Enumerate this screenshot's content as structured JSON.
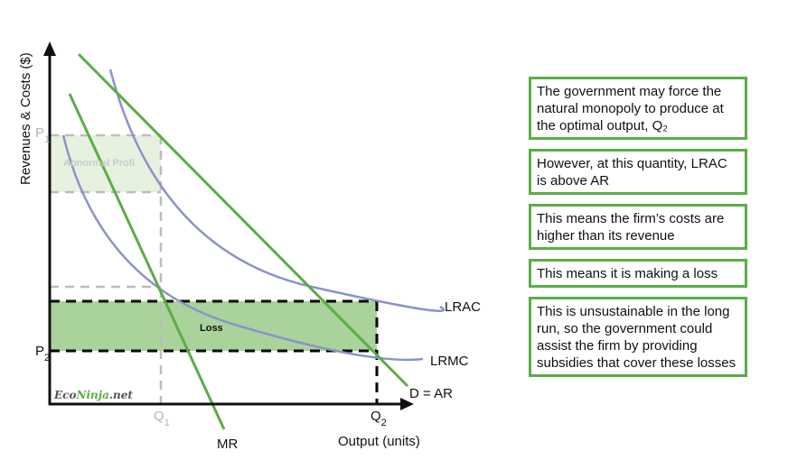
{
  "axes": {
    "y_label": "Revenues & Costs ($)",
    "x_label": "Output (units)"
  },
  "ticks": {
    "p1_main": "P",
    "p1_sub": "1",
    "p2_main": "P",
    "p2_sub": "2",
    "q1_main": "Q",
    "q1_sub": "1",
    "q2_main": "Q",
    "q2_sub": "2"
  },
  "curves": {
    "lrac": "LRAC",
    "lrmc": "LRMC",
    "demand": "D = AR",
    "mr": "MR"
  },
  "regions": {
    "abnormal_profit": "Abnormal Profi",
    "loss": "Loss"
  },
  "watermark": {
    "part1": "Eco",
    "part2": "Ninja",
    "part3": ".net"
  },
  "colors": {
    "green": "#5aad46",
    "purple": "#8b93c9",
    "loss_fill": "#a9d39a",
    "profit_fill": "#e6f1e0"
  },
  "notes": [
    "The government may force the natural monopoly to produce at the optimal output, Q₂",
    "However, at this quantity, LRAC is above AR",
    "This means the firm’s costs are higher than its revenue",
    "This means it is making a loss",
    "This is unsustainable in the long run, so the government could assist the firm by providing subsidies that cover these losses"
  ]
}
